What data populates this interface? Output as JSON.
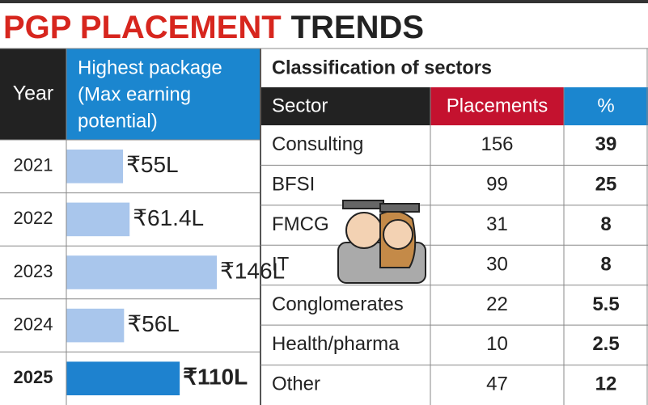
{
  "title": {
    "part1": "PGP PLACEMENT",
    "part2": "TRENDS"
  },
  "packages": {
    "header_year": "Year",
    "header_package": [
      "Highest package",
      "(Max earning",
      "potential)"
    ],
    "rows": [
      {
        "year": "2021",
        "value": 55,
        "label": "₹55L"
      },
      {
        "year": "2022",
        "value": 61.4,
        "label": "₹61.4L"
      },
      {
        "year": "2023",
        "value": 146,
        "label": "₹146L"
      },
      {
        "year": "2024",
        "value": 56,
        "label": "₹56L"
      },
      {
        "year": "2025",
        "value": 110,
        "label": "₹110L"
      }
    ]
  },
  "sectors": {
    "title": "Classification of sectors",
    "header": [
      "Sector",
      "Placements",
      "%"
    ],
    "rows": [
      [
        "Consulting",
        "156",
        "39"
      ],
      [
        "BFSI",
        "99",
        "25"
      ],
      [
        "FMCG",
        "31",
        "8"
      ],
      [
        "IT",
        "30",
        "8"
      ],
      [
        "Conglomerates",
        "22",
        "5.5"
      ],
      [
        "Health/pharma",
        "10",
        "2.5"
      ],
      [
        "Other",
        "47",
        "12"
      ]
    ]
  }
}
